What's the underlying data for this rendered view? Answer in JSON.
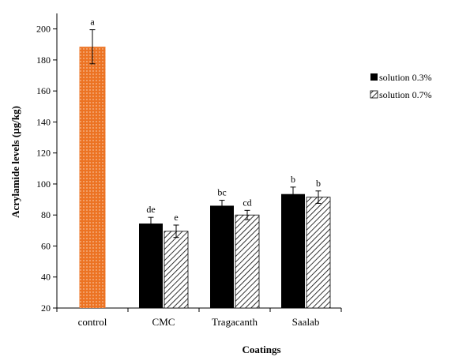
{
  "chart_data": {
    "type": "bar",
    "title": "",
    "xlabel": "Coatings",
    "ylabel": "Acrylamide levels (µg/kg)",
    "ylim": [
      20,
      210
    ],
    "yticks": [
      20,
      40,
      60,
      80,
      100,
      120,
      140,
      160,
      180,
      200
    ],
    "grid": false,
    "legend_position": "right",
    "categories": [
      "control",
      "CMC",
      "Tragacanth",
      "Saalab"
    ],
    "control": {
      "value": 188.5,
      "error": 11,
      "label": "a",
      "color": "#ec7323"
    },
    "series": [
      {
        "name": "solution 0.3%",
        "values": [
          null,
          74.5,
          86,
          93.5
        ],
        "errors": [
          null,
          4,
          3.5,
          4.5
        ],
        "labels": [
          null,
          "de",
          "bc",
          "b"
        ],
        "color": "#000000",
        "pattern": "solid"
      },
      {
        "name": "solution 0.7%",
        "values": [
          null,
          69.5,
          80,
          91.5
        ],
        "errors": [
          null,
          4,
          3,
          4
        ],
        "labels": [
          null,
          "e",
          "cd",
          "b"
        ],
        "color": "#000000",
        "pattern": "hatched"
      }
    ]
  }
}
